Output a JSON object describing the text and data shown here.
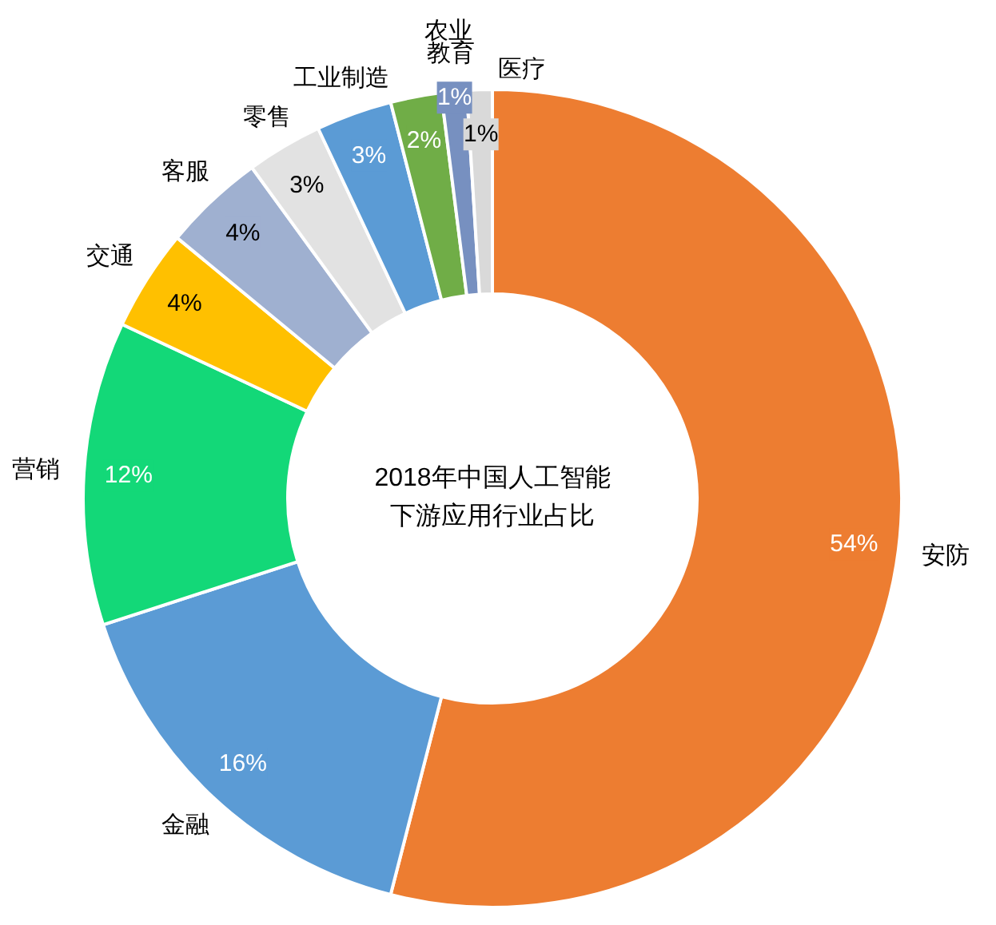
{
  "chart_data": {
    "type": "donut",
    "title": "2018年中国人工智能下游应用行业占比",
    "categories": [
      "安防",
      "金融",
      "营销",
      "交通",
      "客服",
      "零售",
      "工业制造",
      "教育",
      "农业",
      "医疗"
    ],
    "values": [
      54,
      16,
      12,
      4,
      4,
      3,
      3,
      2,
      1,
      1
    ],
    "colors": [
      "#ed7d31",
      "#5b9bd5",
      "#13d878",
      "#ffc000",
      "#9fb0d0",
      "#e2e2e2",
      "#5b9bd5",
      "#70ad47",
      "#7790c0",
      "#d9d9d9"
    ],
    "value_labels": [
      "54%",
      "16%",
      "12%",
      "4%",
      "4%",
      "3%",
      "3%",
      "2%",
      "1%",
      "1%"
    ]
  }
}
